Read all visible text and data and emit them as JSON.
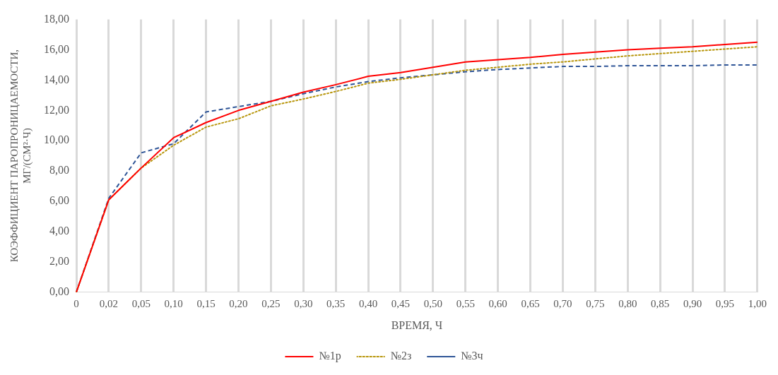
{
  "chart_data": {
    "type": "line",
    "xlabel": "ВРЕМЯ, Ч",
    "ylabel": "КОЭФФИЦИЕНТ ПАРОПРОНИЦАЕМОСТИ, МГ/(СМ²·Ч)",
    "categories": [
      "0",
      "0,02",
      "0,05",
      "0,10",
      "0,15",
      "0,20",
      "0,25",
      "0,30",
      "0,35",
      "0,40",
      "0,45",
      "0,50",
      "0,55",
      "0,60",
      "0,65",
      "0,70",
      "0,75",
      "0,80",
      "0,85",
      "0,90",
      "0,95",
      "1,00"
    ],
    "ylim": [
      0,
      18
    ],
    "yticks": [
      {
        "value": 0,
        "label": "0,00"
      },
      {
        "value": 2,
        "label": "2,00"
      },
      {
        "value": 4,
        "label": "4,00"
      },
      {
        "value": 6,
        "label": "6,00"
      },
      {
        "value": 8,
        "label": "8,00"
      },
      {
        "value": 10,
        "label": "10,00"
      },
      {
        "value": 12,
        "label": "12,00"
      },
      {
        "value": 14,
        "label": "14,00"
      },
      {
        "value": 16,
        "label": "16,00"
      },
      {
        "value": 18,
        "label": "18,00"
      }
    ],
    "grid": "x",
    "legend": "bottom",
    "marker": "none",
    "series": [
      {
        "name": "№1р",
        "color": "#ff0000",
        "line_style": "solid",
        "values": [
          0,
          6.1,
          8.2,
          10.2,
          11.2,
          12.0,
          12.6,
          13.2,
          13.7,
          14.25,
          14.5,
          14.85,
          15.2,
          15.35,
          15.5,
          15.7,
          15.85,
          16.0,
          16.1,
          16.2,
          16.35,
          16.5
        ]
      },
      {
        "name": "№2з",
        "color": "#b8960c",
        "line_style": "dotted",
        "values": [
          0,
          6.1,
          8.2,
          9.7,
          10.9,
          11.45,
          12.3,
          12.75,
          13.25,
          13.8,
          14.05,
          14.35,
          14.65,
          14.85,
          15.05,
          15.2,
          15.4,
          15.6,
          15.75,
          15.9,
          16.05,
          16.2
        ]
      },
      {
        "name": "№3ч",
        "color": "#2f5597",
        "line_style": "dashed",
        "values": [
          0,
          6.2,
          9.2,
          9.8,
          11.9,
          12.25,
          12.6,
          13.1,
          13.55,
          13.9,
          14.15,
          14.35,
          14.55,
          14.7,
          14.8,
          14.9,
          14.9,
          14.95,
          14.95,
          14.95,
          15.0,
          15.0
        ]
      }
    ]
  }
}
